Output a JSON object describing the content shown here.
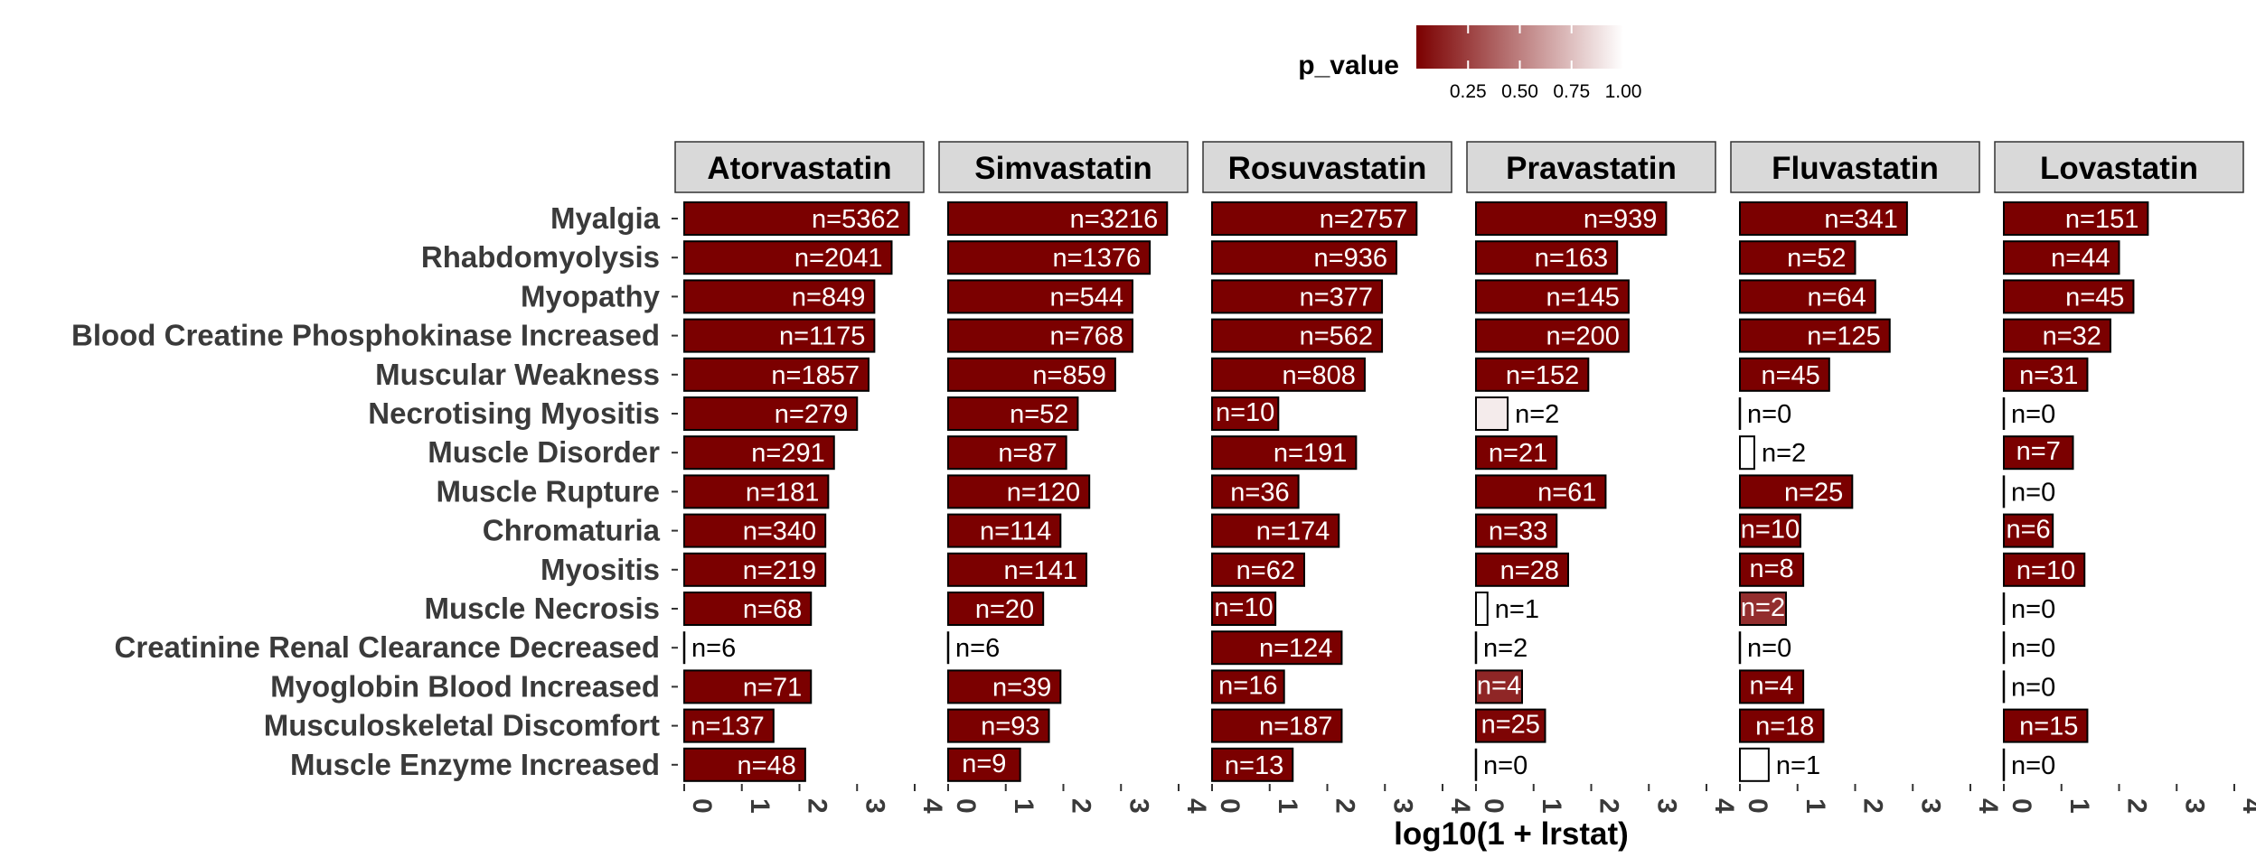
{
  "chart_data": {
    "type": "bar",
    "orientation": "horizontal",
    "xlabel": "log10(1 + lrstat)",
    "xlim": [
      0,
      4
    ],
    "xticks": [
      0,
      1,
      2,
      3,
      4
    ],
    "legend": {
      "title": "p_value",
      "ticks": [
        "0.25",
        "0.50",
        "0.75",
        "1.00"
      ],
      "range": [
        0,
        1
      ],
      "low_color": "#7b0000",
      "high_color": "#ffffff",
      "placement": "top"
    },
    "categories": [
      "Myalgia",
      "Rhabdomyolysis",
      "Myopathy",
      "Blood Creatine Phosphokinase Increased",
      "Muscular Weakness",
      "Necrotising Myositis",
      "Muscle Disorder",
      "Muscle Rupture",
      "Chromaturia",
      "Myositis",
      "Muscle Necrosis",
      "Creatinine Renal Clearance Decreased",
      "Myoglobin Blood Increased",
      "Musculoskeletal Discomfort",
      "Muscle Enzyme Increased"
    ],
    "facets": [
      {
        "name": "Atorvastatin",
        "values": [
          3.9,
          3.6,
          3.3,
          3.3,
          3.2,
          3.0,
          2.6,
          2.5,
          2.45,
          2.45,
          2.2,
          0.0,
          2.2,
          1.55,
          2.1
        ],
        "labels": [
          "n=5362",
          "n=2041",
          "n=849",
          "n=1175",
          "n=1857",
          "n=279",
          "n=291",
          "n=181",
          "n=340",
          "n=219",
          "n=68",
          "n=6",
          "n=71",
          "n=137",
          "n=48"
        ],
        "p_values": [
          0,
          0,
          0,
          0,
          0,
          0,
          0,
          0,
          0,
          0,
          0,
          0,
          0,
          0,
          0
        ]
      },
      {
        "name": "Simvastatin",
        "values": [
          3.8,
          3.5,
          3.2,
          3.2,
          2.9,
          2.25,
          2.05,
          2.45,
          1.95,
          2.4,
          1.65,
          0.0,
          1.95,
          1.75,
          1.25
        ],
        "labels": [
          "n=3216",
          "n=1376",
          "n=544",
          "n=768",
          "n=859",
          "n=52",
          "n=87",
          "n=120",
          "n=114",
          "n=141",
          "n=20",
          "n=6",
          "n=39",
          "n=93",
          "n=9"
        ],
        "p_values": [
          0,
          0,
          0,
          0,
          0,
          0,
          0,
          0,
          0,
          0,
          0,
          0,
          0,
          0,
          0
        ]
      },
      {
        "name": "Rosuvastatin",
        "values": [
          3.55,
          3.2,
          2.95,
          2.95,
          2.65,
          1.15,
          2.5,
          1.5,
          2.2,
          1.6,
          1.1,
          2.25,
          1.25,
          2.25,
          1.4
        ],
        "labels": [
          "n=2757",
          "n=936",
          "n=377",
          "n=562",
          "n=808",
          "n=10",
          "n=191",
          "n=36",
          "n=174",
          "n=62",
          "n=10",
          "n=124",
          "n=16",
          "n=187",
          "n=13"
        ],
        "p_values": [
          0,
          0,
          0,
          0,
          0,
          0,
          0,
          0,
          0,
          0,
          0,
          0,
          0,
          0,
          0
        ]
      },
      {
        "name": "Pravastatin",
        "values": [
          3.3,
          2.45,
          2.65,
          2.65,
          1.95,
          0.55,
          1.4,
          2.25,
          1.4,
          1.6,
          0.2,
          0.0,
          0.8,
          1.2,
          0.0
        ],
        "labels": [
          "n=939",
          "n=163",
          "n=145",
          "n=200",
          "n=152",
          "n=2",
          "n=21",
          "n=61",
          "n=33",
          "n=28",
          "n=1",
          "n=2",
          "n=4",
          "n=25",
          "n=0"
        ],
        "p_values": [
          0,
          0,
          0,
          0,
          0,
          0.92,
          0,
          0,
          0,
          0,
          1.0,
          1.0,
          0.15,
          0.02,
          1.0
        ]
      },
      {
        "name": "Fluvastatin",
        "values": [
          2.9,
          2.0,
          2.35,
          2.6,
          1.55,
          0.0,
          0.25,
          1.95,
          1.05,
          1.1,
          0.8,
          0.0,
          1.1,
          1.45,
          0.5
        ],
        "labels": [
          "n=341",
          "n=52",
          "n=64",
          "n=125",
          "n=45",
          "n=0",
          "n=2",
          "n=25",
          "n=10",
          "n=8",
          "n=2",
          "n=0",
          "n=4",
          "n=18",
          "n=1"
        ],
        "p_values": [
          0,
          0,
          0,
          0,
          0,
          1.0,
          1.0,
          0,
          0,
          0,
          0.18,
          1.0,
          0,
          0,
          1.0
        ]
      },
      {
        "name": "Lovastatin",
        "values": [
          2.5,
          2.0,
          2.25,
          1.85,
          1.45,
          0.0,
          1.2,
          0.0,
          0.85,
          1.4,
          0.0,
          0.0,
          0.0,
          1.45,
          0.0
        ],
        "labels": [
          "n=151",
          "n=44",
          "n=45",
          "n=32",
          "n=31",
          "n=0",
          "n=7",
          "n=0",
          "n=6",
          "n=10",
          "n=0",
          "n=0",
          "n=0",
          "n=15",
          "n=0"
        ],
        "p_values": [
          0,
          0,
          0,
          0,
          0,
          1.0,
          0,
          1.0,
          0,
          0,
          1.0,
          1.0,
          1.0,
          0,
          1.0
        ]
      }
    ]
  }
}
